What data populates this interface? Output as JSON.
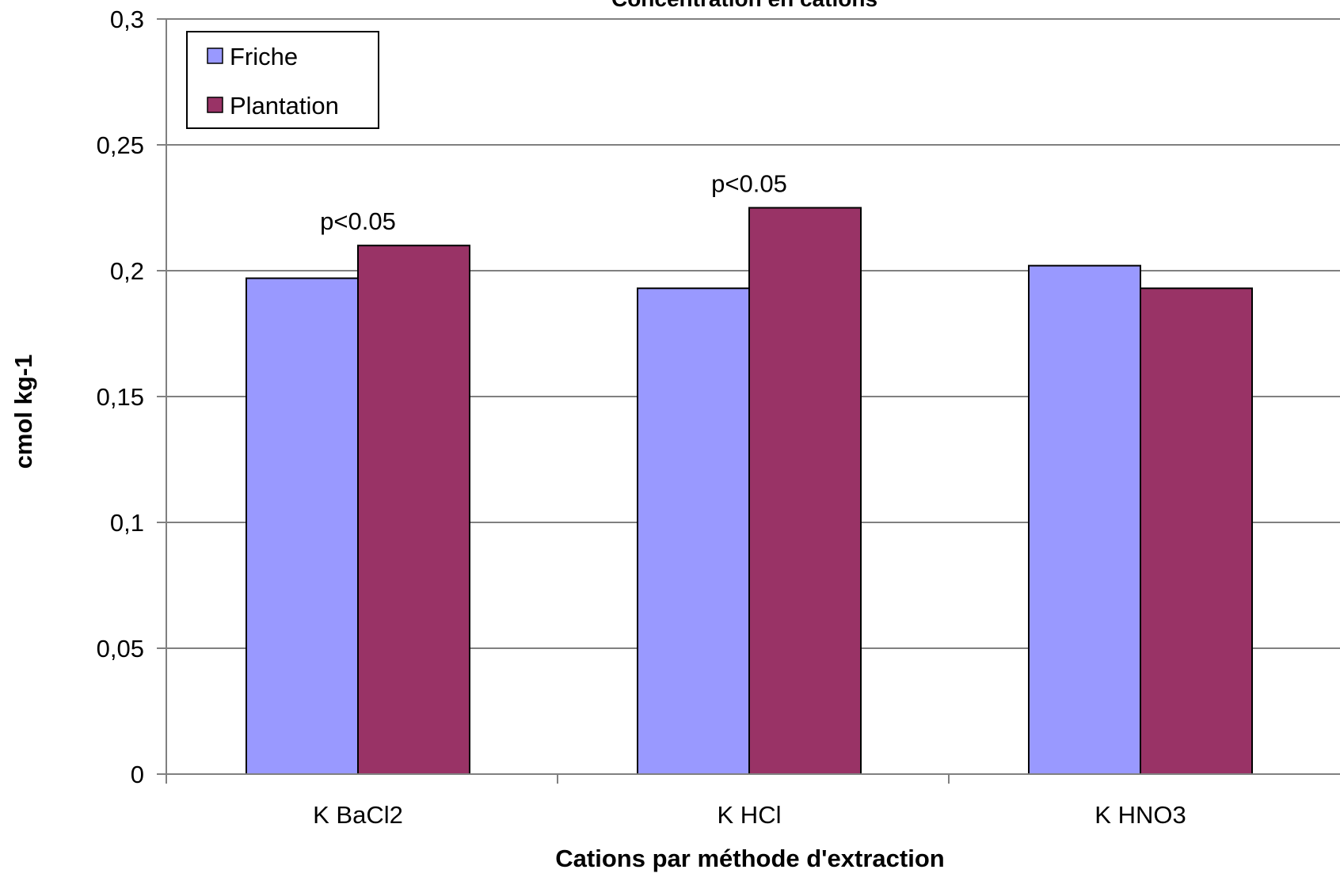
{
  "chart_data": {
    "type": "bar",
    "title": "Concentration en cations",
    "xlabel": "Cations par méthode d'extraction",
    "ylabel": "cmol kg-1",
    "categories": [
      "K  BaCl2",
      "K HCl",
      "K HNO3"
    ],
    "series": [
      {
        "name": "Friche",
        "color": "#9999ff",
        "values": [
          0.197,
          0.193,
          0.202
        ]
      },
      {
        "name": "Plantation",
        "color": "#993366",
        "values": [
          0.21,
          0.225,
          0.193
        ]
      }
    ],
    "ylim": [
      0,
      0.3
    ],
    "yticks": [
      0,
      0.05,
      0.1,
      0.15,
      0.2,
      0.25,
      0.3
    ],
    "ytick_labels": [
      "0",
      "0,05",
      "0,1",
      "0,15",
      "0,2",
      "0,25",
      "0,3"
    ],
    "annotations": [
      {
        "text": "p<0.05",
        "category_index": 0
      },
      {
        "text": "p<0.05",
        "category_index": 1
      }
    ],
    "grid": true,
    "legend_position": "top-left"
  }
}
